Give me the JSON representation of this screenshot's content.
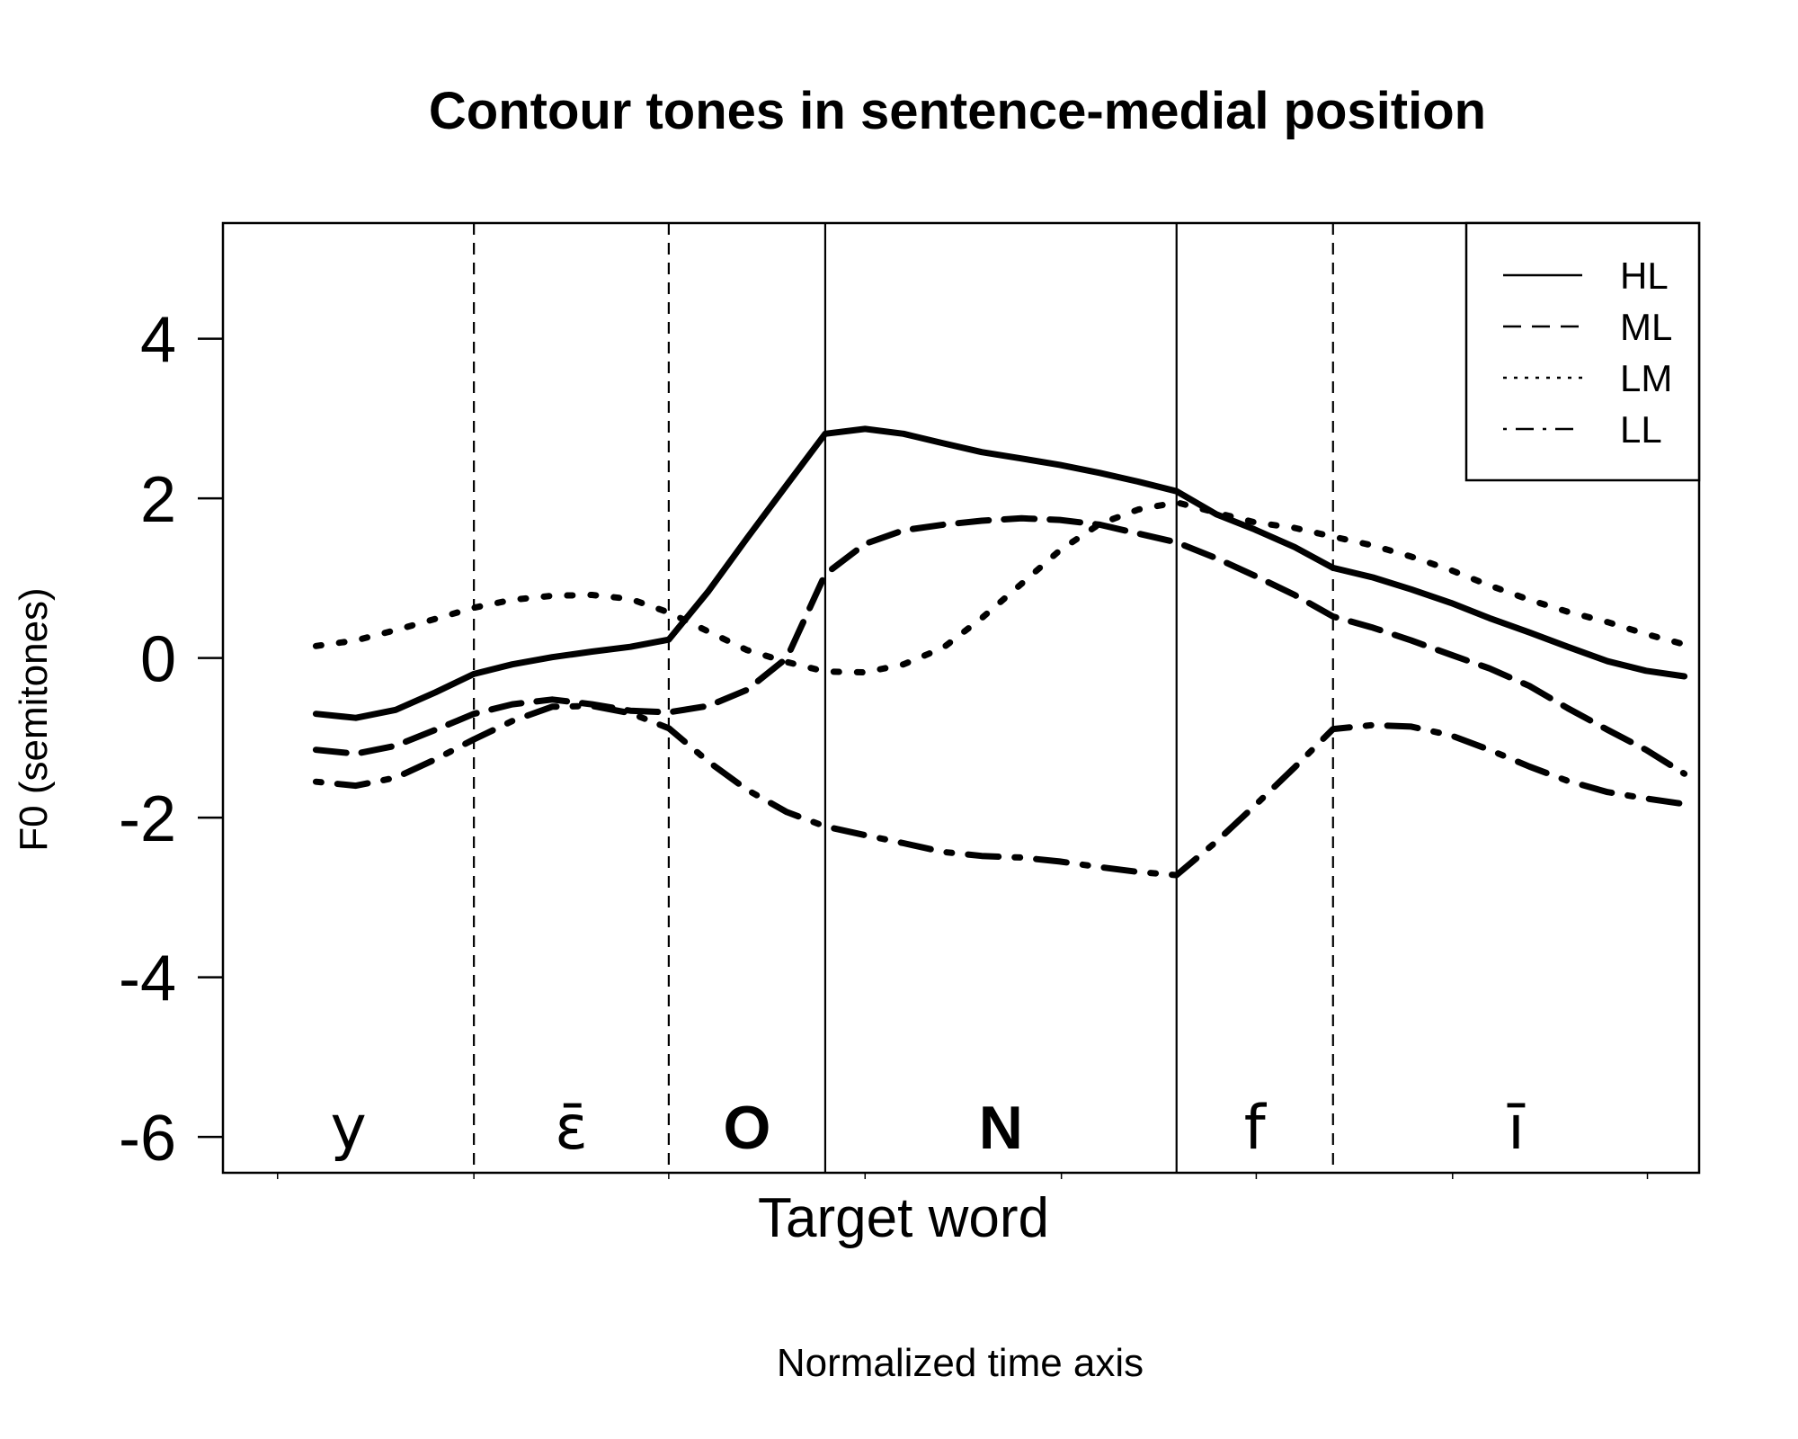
{
  "chart_data": {
    "type": "line",
    "title": "Contour tones in sentence-medial position",
    "xlabel": "Target word",
    "subtitle_below": "Normalized time axis",
    "ylabel": "F0 (semitones)",
    "xlim": [
      0,
      1
    ],
    "ylim": [
      -6.45,
      5.45
    ],
    "yticks": [
      4,
      2,
      0,
      -2,
      -4,
      -6
    ],
    "legend_position": "top-right",
    "segments": [
      {
        "label": "y",
        "start": 0.0,
        "end": 0.17,
        "bold": false
      },
      {
        "label": "ɛ̄",
        "start": 0.17,
        "end": 0.302,
        "bold": false
      },
      {
        "label": "O",
        "start": 0.302,
        "end": 0.408,
        "bold": true
      },
      {
        "label": "N",
        "start": 0.408,
        "end": 0.646,
        "bold": true
      },
      {
        "label": "f",
        "start": 0.646,
        "end": 0.752,
        "bold": false
      },
      {
        "label": "ī",
        "start": 0.752,
        "end": 1.0,
        "bold": false
      }
    ],
    "boundaries": [
      {
        "x": 0.17,
        "style": "dashed"
      },
      {
        "x": 0.302,
        "style": "dashed"
      },
      {
        "x": 0.408,
        "style": "solid"
      },
      {
        "x": 0.646,
        "style": "solid"
      },
      {
        "x": 0.752,
        "style": "dashed"
      }
    ],
    "minor_ticks": [
      0.037,
      0.17,
      0.302,
      0.435,
      0.568,
      0.7,
      0.833,
      0.965
    ],
    "series": [
      {
        "name": "HL",
        "dash": "solid",
        "x": [
          0.063,
          0.09,
          0.117,
          0.144,
          0.17,
          0.196,
          0.223,
          0.25,
          0.276,
          0.302,
          0.329,
          0.355,
          0.382,
          0.408,
          0.435,
          0.461,
          0.488,
          0.514,
          0.541,
          0.567,
          0.594,
          0.62,
          0.646,
          0.673,
          0.699,
          0.726,
          0.752,
          0.779,
          0.805,
          0.832,
          0.858,
          0.885,
          0.911,
          0.938,
          0.964,
          0.99
        ],
        "y": [
          -0.7,
          -0.75,
          -0.65,
          -0.43,
          -0.2,
          -0.08,
          0.01,
          0.08,
          0.14,
          0.23,
          0.84,
          1.5,
          2.17,
          2.81,
          2.87,
          2.81,
          2.69,
          2.58,
          2.5,
          2.42,
          2.32,
          2.21,
          2.09,
          1.8,
          1.61,
          1.39,
          1.13,
          1.01,
          0.86,
          0.69,
          0.5,
          0.32,
          0.14,
          -0.04,
          -0.16,
          -0.23
        ]
      },
      {
        "name": "ML",
        "dash": "dashed",
        "x": [
          0.063,
          0.09,
          0.117,
          0.144,
          0.17,
          0.196,
          0.223,
          0.25,
          0.276,
          0.302,
          0.329,
          0.355,
          0.382,
          0.408,
          0.435,
          0.461,
          0.488,
          0.514,
          0.541,
          0.567,
          0.594,
          0.62,
          0.646,
          0.673,
          0.699,
          0.726,
          0.752,
          0.779,
          0.805,
          0.832,
          0.858,
          0.885,
          0.911,
          0.938,
          0.964,
          0.99
        ],
        "y": [
          -1.15,
          -1.2,
          -1.1,
          -0.9,
          -0.7,
          -0.58,
          -0.52,
          -0.58,
          -0.66,
          -0.68,
          -0.6,
          -0.4,
          0.0,
          1.05,
          1.43,
          1.6,
          1.67,
          1.72,
          1.75,
          1.73,
          1.67,
          1.56,
          1.45,
          1.25,
          1.03,
          0.79,
          0.52,
          0.38,
          0.22,
          0.04,
          -0.13,
          -0.35,
          -0.63,
          -0.9,
          -1.15,
          -1.45
        ]
      },
      {
        "name": "LM",
        "dash": "dotted",
        "x": [
          0.063,
          0.09,
          0.117,
          0.144,
          0.17,
          0.196,
          0.223,
          0.25,
          0.276,
          0.302,
          0.329,
          0.355,
          0.382,
          0.408,
          0.435,
          0.461,
          0.488,
          0.514,
          0.541,
          0.567,
          0.594,
          0.62,
          0.646,
          0.673,
          0.699,
          0.726,
          0.752,
          0.779,
          0.805,
          0.832,
          0.858,
          0.885,
          0.911,
          0.938,
          0.964,
          0.99
        ],
        "y": [
          0.15,
          0.22,
          0.35,
          0.49,
          0.63,
          0.73,
          0.78,
          0.79,
          0.74,
          0.57,
          0.33,
          0.1,
          -0.05,
          -0.17,
          -0.18,
          -0.08,
          0.13,
          0.5,
          0.93,
          1.35,
          1.68,
          1.86,
          1.95,
          1.82,
          1.7,
          1.63,
          1.52,
          1.41,
          1.27,
          1.1,
          0.91,
          0.73,
          0.58,
          0.45,
          0.3,
          0.17
        ]
      },
      {
        "name": "LL",
        "dash": "dotdash",
        "x": [
          0.063,
          0.09,
          0.117,
          0.144,
          0.17,
          0.196,
          0.223,
          0.25,
          0.276,
          0.302,
          0.329,
          0.355,
          0.382,
          0.408,
          0.435,
          0.461,
          0.488,
          0.514,
          0.541,
          0.567,
          0.594,
          0.62,
          0.646,
          0.673,
          0.699,
          0.726,
          0.752,
          0.779,
          0.805,
          0.832,
          0.858,
          0.885,
          0.911,
          0.938,
          0.964,
          0.99
        ],
        "y": [
          -1.55,
          -1.6,
          -1.5,
          -1.27,
          -1.02,
          -0.79,
          -0.61,
          -0.6,
          -0.69,
          -0.88,
          -1.3,
          -1.65,
          -1.93,
          -2.11,
          -2.22,
          -2.32,
          -2.43,
          -2.48,
          -2.5,
          -2.55,
          -2.62,
          -2.68,
          -2.72,
          -2.3,
          -1.85,
          -1.37,
          -0.89,
          -0.84,
          -0.86,
          -0.97,
          -1.15,
          -1.36,
          -1.54,
          -1.68,
          -1.76,
          -1.83
        ]
      }
    ]
  }
}
